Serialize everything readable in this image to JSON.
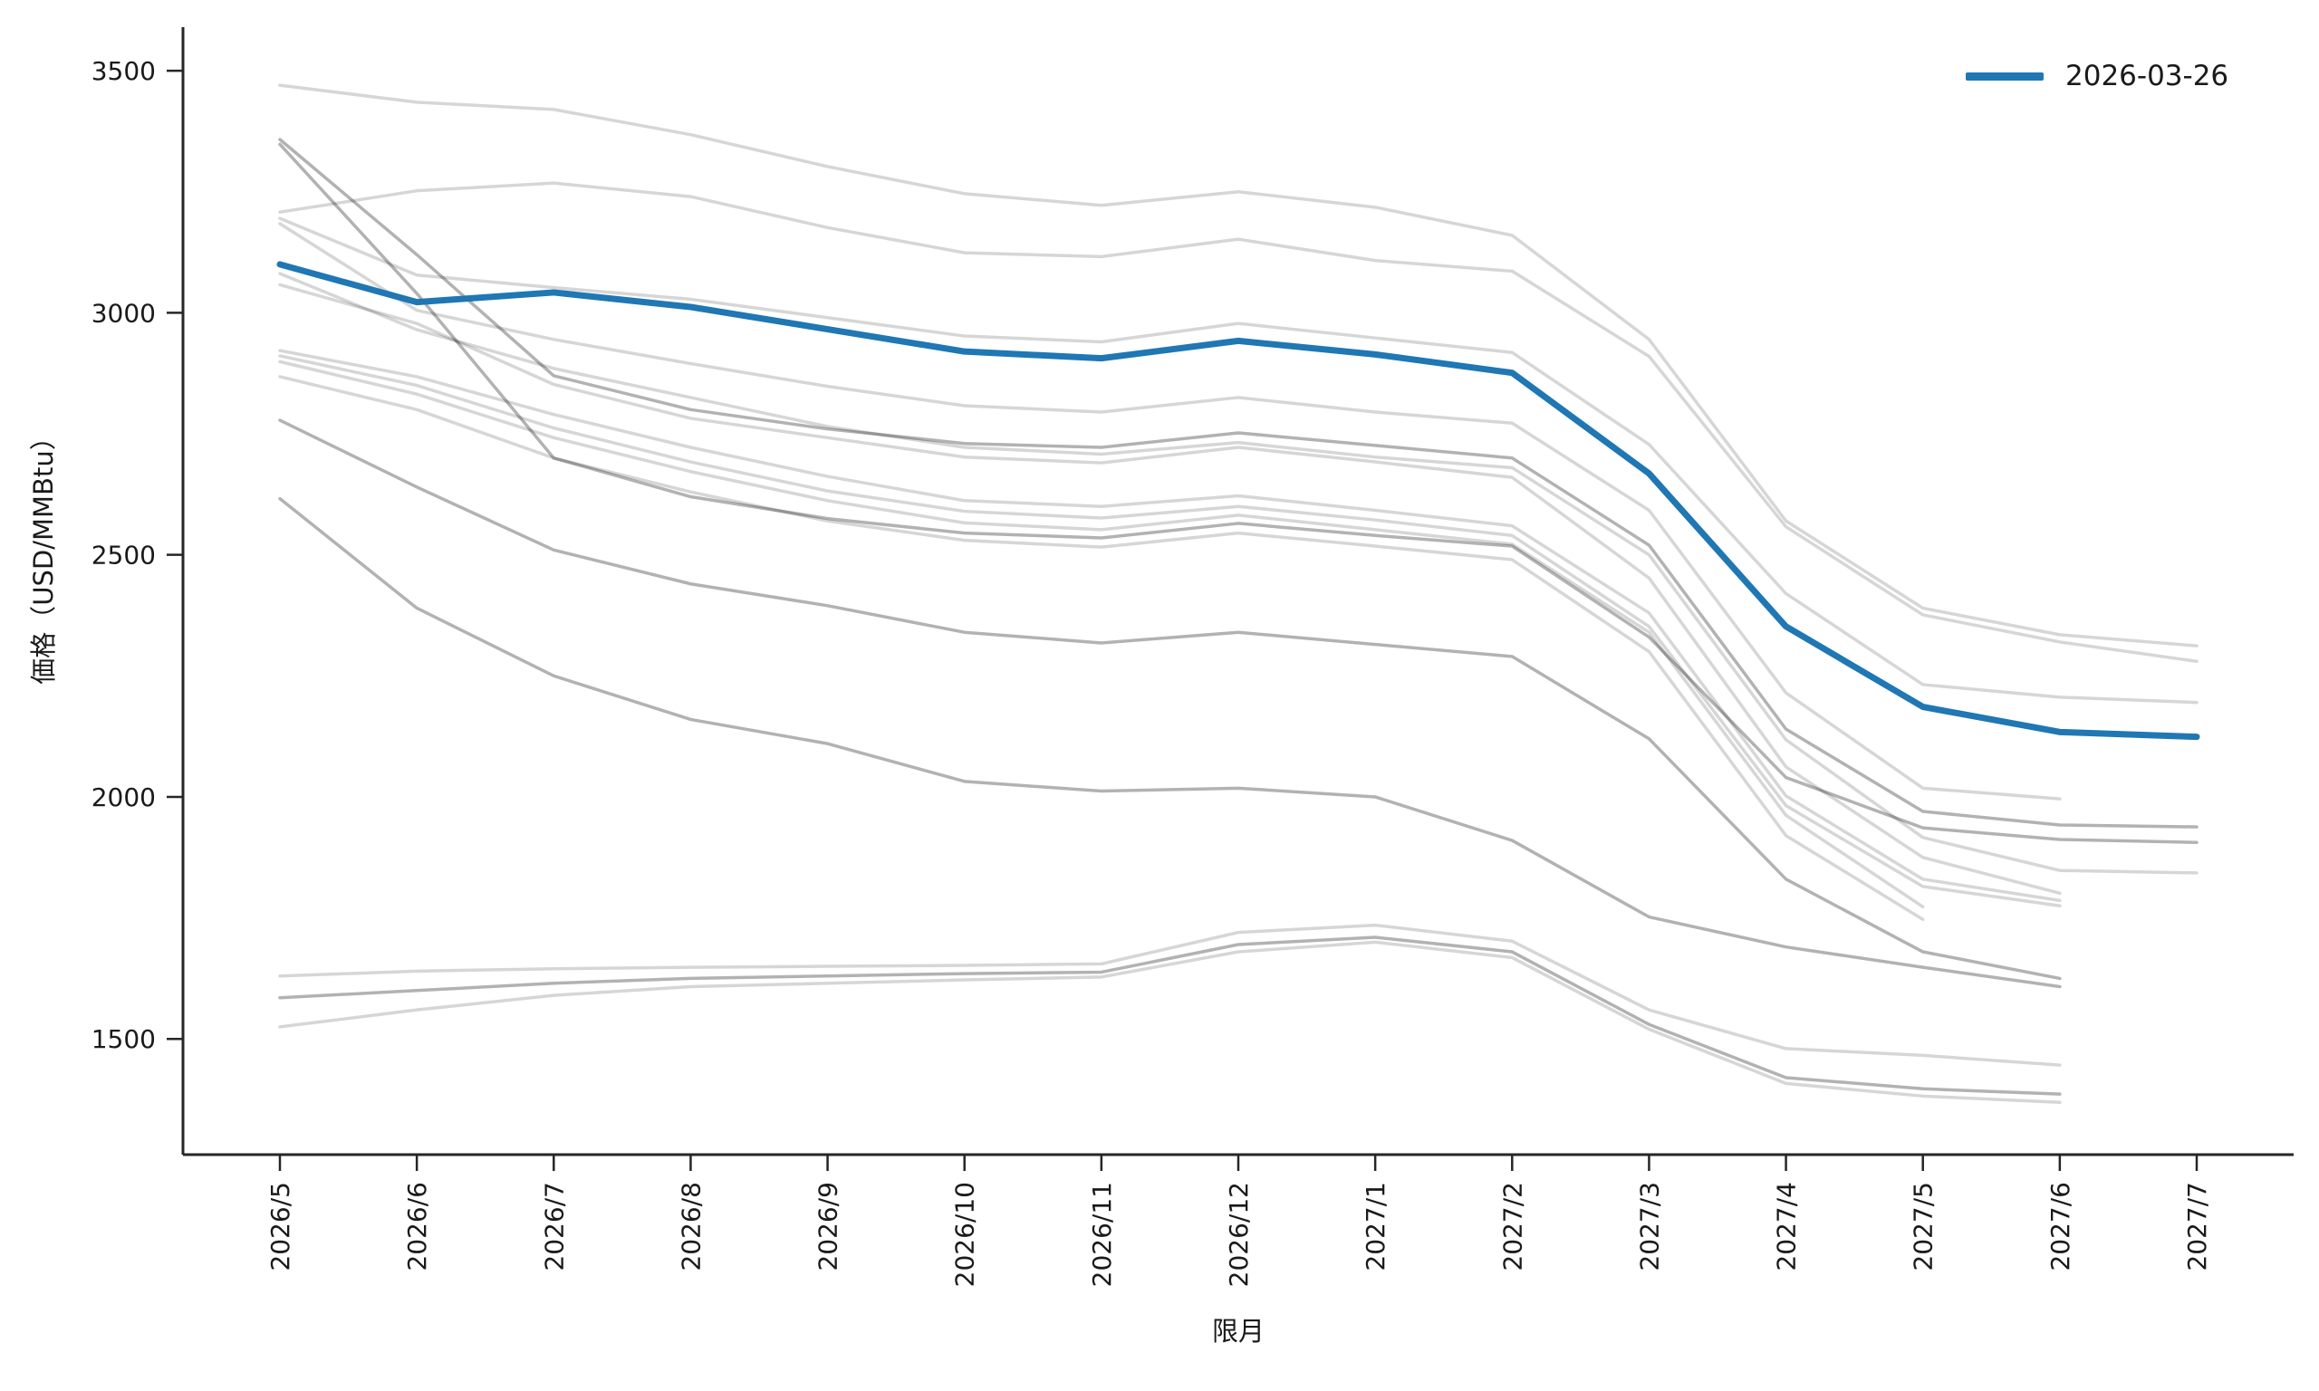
{
  "chart_data": {
    "type": "line",
    "title": "",
    "xlabel": "限月",
    "ylabel": "価格（USD/MMBtu）",
    "categories": [
      "2026/5",
      "2026/6",
      "2026/7",
      "2026/8",
      "2026/9",
      "2026/10",
      "2026/11",
      "2026/12",
      "2027/1",
      "2027/2",
      "2027/3",
      "2027/4",
      "2027/5",
      "2027/6",
      "2027/7"
    ],
    "yticks": [
      1500,
      2000,
      2500,
      3000,
      3500
    ],
    "ylim": [
      1261,
      3590
    ],
    "grid": false,
    "legend": {
      "position": "upper right",
      "entries": [
        {
          "label": "2026-03-26",
          "color": "#1f77b4"
        }
      ]
    },
    "highlight": {
      "name": "2026-03-26",
      "color": "#1f77b4",
      "width": 7,
      "values": [
        3100,
        3022,
        3042,
        3012,
        2966,
        2920,
        2906,
        2942,
        2914,
        2876,
        2668,
        2352,
        2186,
        2134,
        2124
      ]
    },
    "series": [
      {
        "shade": "light",
        "values": [
          3470,
          3435,
          3420,
          3368,
          3302,
          3246,
          3222,
          3250,
          3218,
          3160,
          2945,
          2570,
          2390,
          2335,
          2312
        ]
      },
      {
        "shade": "light",
        "values": [
          3208,
          3252,
          3268,
          3240,
          3176,
          3124,
          3116,
          3152,
          3108,
          3086,
          2910,
          2558,
          2376,
          2320,
          2280
        ]
      },
      {
        "shade": "light",
        "values": [
          3195,
          3078,
          3052,
          3028,
          2990,
          2952,
          2940,
          2978,
          2948,
          2918,
          2728,
          2420,
          2232,
          2206,
          2195
        ]
      },
      {
        "shade": "dark",
        "values": [
          3358,
          3120,
          2870,
          2800,
          2760,
          2730,
          2722,
          2752,
          2726,
          2700,
          2520,
          2140,
          1970,
          1942,
          1938
        ]
      },
      {
        "shade": "dark",
        "values": [
          3348,
          3040,
          2700,
          2620,
          2575,
          2545,
          2535,
          2565,
          2540,
          2518,
          2330,
          2040,
          1936,
          1912,
          1906
        ]
      },
      {
        "shade": "light",
        "values": [
          3184,
          3005,
          2945,
          2895,
          2848,
          2808,
          2795,
          2825,
          2795,
          2772,
          2592,
          2215,
          2018,
          1996,
          null
        ]
      },
      {
        "shade": "light",
        "values": [
          3081,
          2965,
          2885,
          2825,
          2765,
          2722,
          2708,
          2732,
          2702,
          2680,
          2500,
          2118,
          1916,
          1848,
          1843
        ]
      },
      {
        "shade": "light",
        "values": [
          3058,
          2978,
          2852,
          2782,
          2742,
          2702,
          2690,
          2722,
          2692,
          2660,
          2452,
          2062,
          1875,
          1801,
          null
        ]
      },
      {
        "shade": "light",
        "values": [
          2922,
          2868,
          2790,
          2722,
          2662,
          2612,
          2600,
          2622,
          2592,
          2560,
          2380,
          2002,
          1830,
          1786,
          null
        ]
      },
      {
        "shade": "light",
        "values": [
          2911,
          2850,
          2762,
          2692,
          2632,
          2590,
          2576,
          2600,
          2572,
          2540,
          2352,
          1982,
          1815,
          1775,
          null
        ]
      },
      {
        "shade": "light",
        "values": [
          2899,
          2832,
          2742,
          2672,
          2612,
          2566,
          2552,
          2582,
          2552,
          2522,
          2340,
          1962,
          1773,
          null,
          null
        ]
      },
      {
        "shade": "light",
        "values": [
          2868,
          2800,
          2700,
          2630,
          2570,
          2530,
          2516,
          2545,
          2518,
          2490,
          2300,
          1920,
          1747,
          null,
          null
        ]
      },
      {
        "shade": "dark",
        "values": [
          2778,
          2640,
          2510,
          2440,
          2395,
          2340,
          2318,
          2340,
          2315,
          2290,
          2120,
          1830,
          1680,
          1625,
          null
        ]
      },
      {
        "shade": "dark",
        "values": [
          2616,
          2390,
          2250,
          2160,
          2110,
          2032,
          2012,
          2018,
          2000,
          1910,
          1752,
          1690,
          1648,
          1608,
          null
        ]
      },
      {
        "shade": "light",
        "values": [
          1630,
          1640,
          1645,
          1648,
          1650,
          1652,
          1655,
          1720,
          1735,
          1702,
          1560,
          1480,
          1466,
          1446,
          null
        ]
      },
      {
        "shade": "dark",
        "values": [
          1585,
          1600,
          1615,
          1625,
          1630,
          1635,
          1638,
          1695,
          1710,
          1680,
          1530,
          1420,
          1397,
          1386,
          null
        ]
      },
      {
        "shade": "light",
        "values": [
          1525,
          1560,
          1590,
          1608,
          1615,
          1622,
          1628,
          1680,
          1700,
          1668,
          1520,
          1408,
          1382,
          1369,
          null
        ]
      }
    ],
    "colors": {
      "highlight": "#1f77b4",
      "series_light": "rgba(0,0,0,0.16)",
      "series_dark": "rgba(0,0,0,0.30)",
      "axis": "#262626",
      "tick_text": "#1a1a1a"
    }
  }
}
